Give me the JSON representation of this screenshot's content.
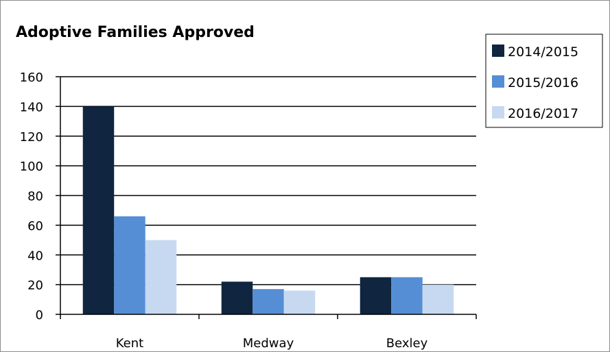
{
  "chart_data": {
    "type": "bar",
    "title": "Adoptive Families Approved",
    "xlabel": "",
    "ylabel": "",
    "categories": [
      "Kent",
      "Medway",
      "Bexley"
    ],
    "series": [
      {
        "name": "2014/2015",
        "color": "#10253f",
        "values": [
          140,
          22,
          25
        ]
      },
      {
        "name": "2015/2016",
        "color": "#558ed5",
        "values": [
          66,
          17,
          25
        ]
      },
      {
        "name": "2016/2017",
        "color": "#c6d9f1",
        "values": [
          50,
          16,
          20
        ]
      }
    ],
    "ylim": [
      0,
      160
    ],
    "yticks": [
      0,
      20,
      40,
      60,
      80,
      100,
      120,
      140,
      160
    ],
    "grid": true,
    "legend_position": "right"
  }
}
